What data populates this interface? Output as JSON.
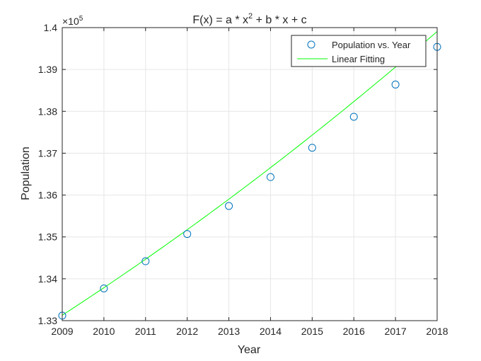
{
  "chart_data": {
    "type": "scatter",
    "title": "F(x) = a * x² + b * x + c",
    "title_parts": {
      "main": "F(x) = a * x",
      "sup": "2",
      "rest": " + b * x + c"
    },
    "xlabel": "Year",
    "ylabel": "Population",
    "exponent_label": {
      "base": "×10",
      "sup": "5"
    },
    "xlim": [
      2009,
      2018
    ],
    "ylim": [
      1.33,
      1.4
    ],
    "y_scale_note": "y values in units of 1e5",
    "x_ticks": [
      "2009",
      "2010",
      "2011",
      "2012",
      "2013",
      "2014",
      "2015",
      "2016",
      "2017",
      "2018"
    ],
    "x_tick_values": [
      2009,
      2010,
      2011,
      2012,
      2013,
      2014,
      2015,
      2016,
      2017,
      2018
    ],
    "y_ticks": [
      "1.33",
      "1.34",
      "1.35",
      "1.36",
      "1.37",
      "1.38",
      "1.39",
      "1.4"
    ],
    "y_tick_values": [
      1.33,
      1.34,
      1.35,
      1.36,
      1.37,
      1.38,
      1.39,
      1.4
    ],
    "grid": true,
    "legend_position": "top-right",
    "series": [
      {
        "name": "Population vs. Year",
        "kind": "markers",
        "marker": "circle",
        "color": "#0072bd",
        "x": [
          2009,
          2010,
          2011,
          2012,
          2013,
          2014,
          2015,
          2016,
          2017,
          2018
        ],
        "y": [
          1.3312,
          1.3377,
          1.3442,
          1.3507,
          1.3574,
          1.3643,
          1.3713,
          1.3787,
          1.3864,
          1.3954
        ]
      },
      {
        "name": "Linear Fitting",
        "kind": "line",
        "color": "#00ff00",
        "coefficients": {
          "a": 0.00012,
          "b": 0.00645,
          "h": 2009,
          "c": 1.3313
        }
      }
    ]
  }
}
